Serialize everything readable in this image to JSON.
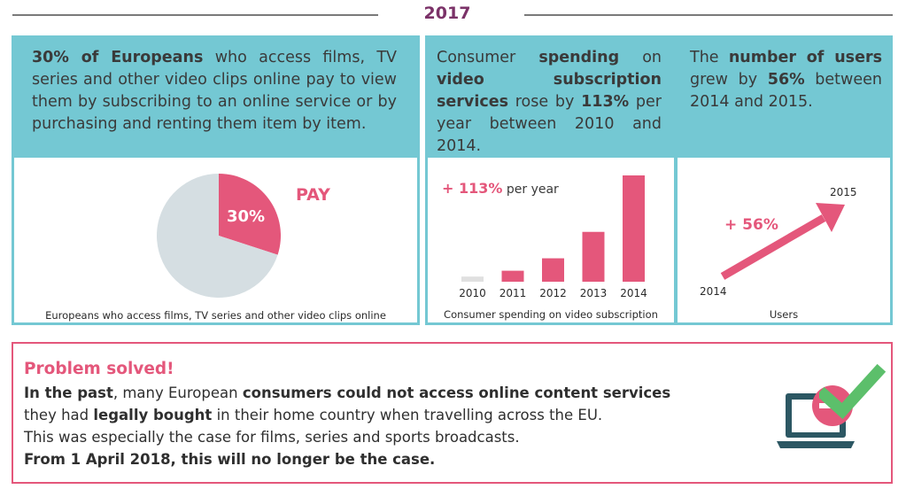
{
  "year": "2017",
  "left_panel": {
    "headline": {
      "b1": "30% of Europeans",
      "t1": " who access films, TV series and other video clips online pay to view them by subscribing to an online service or by purchasing and renting them item by item."
    },
    "pie_label": "PAY",
    "pie_value_label": "30%",
    "caption": "Europeans who access films, TV series and other video clips online"
  },
  "middle_panel": {
    "headline": {
      "t1": "Consumer ",
      "b1": "spending",
      "t2": " on ",
      "b2": "video subscription services",
      "t3": " rose by ",
      "b3": "113%",
      "t4": " per year between 2010 and 2014."
    },
    "growth_pct": "+ 113%",
    "growth_suffix": " per year",
    "caption": "Consumer spending on video subscription"
  },
  "right_panel": {
    "headline": {
      "t1": "The ",
      "b1": "number of users",
      "t2": " grew by ",
      "b2": "56%",
      "t3": " between 2014 and 2015."
    },
    "growth_pct": "+ 56%",
    "start_year": "2014",
    "end_year": "2015",
    "caption": "Users"
  },
  "chart_data": [
    {
      "type": "pie",
      "categories": [
        "PAY",
        ""
      ],
      "values": [
        30,
        70
      ],
      "colors": [
        "#e4577b",
        "#d5dee2"
      ]
    },
    {
      "type": "bar",
      "categories": [
        "2010",
        "2011",
        "2012",
        "2013",
        "2014"
      ],
      "values": [
        1,
        2.13,
        4.54,
        9.66,
        20.6
      ],
      "colors": [
        "#e0e0e0",
        "#e4577b",
        "#e4577b",
        "#e4577b",
        "#e4577b"
      ]
    }
  ],
  "problem": {
    "title": "Problem solved!",
    "line1": {
      "b1": "In the past",
      "t1": ", many European ",
      "b2": "consumers could not access online content services"
    },
    "line2": {
      "t1": "they had ",
      "b1": "legally bought",
      "t2": " in their home country when travelling across the EU."
    },
    "line3": {
      "t1": "This was especially the case for films, series and sports broadcasts."
    },
    "line4": {
      "b1": "From 1 April 2018, this will no longer be the case."
    }
  },
  "colors": {
    "accent_pink": "#e4577b",
    "panel_teal": "#74c8d3",
    "year_purple": "#7b3268",
    "check_green": "#5cbf6b",
    "laptop_dark": "#2c5763"
  },
  "icons": [
    "laptop-icon",
    "checkmark-icon",
    "arrow-up-right-icon"
  ]
}
